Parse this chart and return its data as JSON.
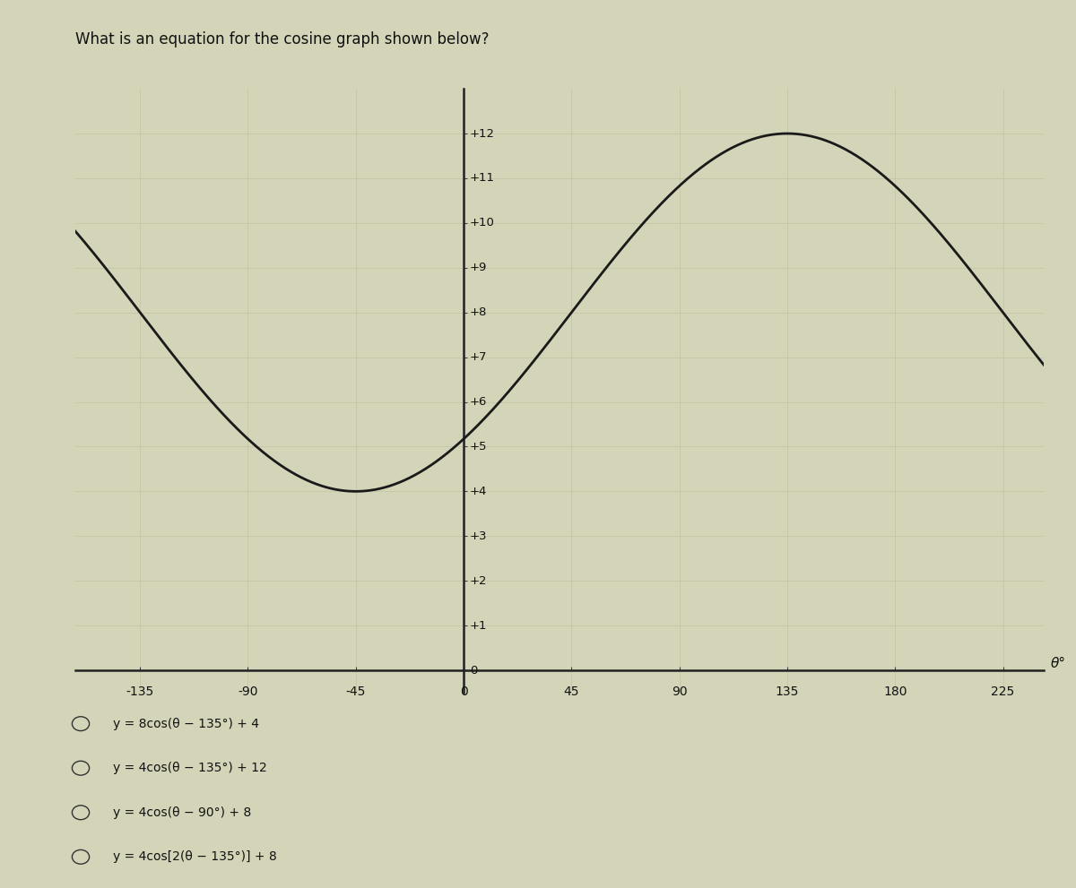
{
  "title": "What is an equation for the cosine graph shown below?",
  "title_fontsize": 12,
  "amplitude": 4,
  "vertical_shift": 8,
  "phase_shift": 135,
  "theta_min": -162,
  "theta_max": 242,
  "y_min": 0,
  "y_max": 13,
  "y_display_min": -0.5,
  "x_ticks": [
    -135,
    -90,
    -45,
    0,
    45,
    90,
    135,
    180,
    225
  ],
  "y_ticks": [
    1,
    2,
    3,
    4,
    5,
    6,
    7,
    8,
    9,
    10,
    11,
    12
  ],
  "x_label": "θ°",
  "grid_color": "#c8c8a8",
  "background_color": "#d4d4b8",
  "curve_color": "#1a1a1a",
  "curve_linewidth": 2.0,
  "choices": [
    "y = 8cos(θ − 135°) + 4",
    "y = 4cos(θ − 135°) + 12",
    "y = 4cos(θ − 90°) + 8",
    "y = 4cos[2(θ − 135°)] + 8"
  ],
  "choice_labels": [
    "y = 8cos(θ − 135°) + 4",
    "y = 4cos(θ − 135°) + 12",
    "y = 4cos(θ − 90°) + 8",
    "y = 4cos[2(θ − 135°)] + 8"
  ]
}
